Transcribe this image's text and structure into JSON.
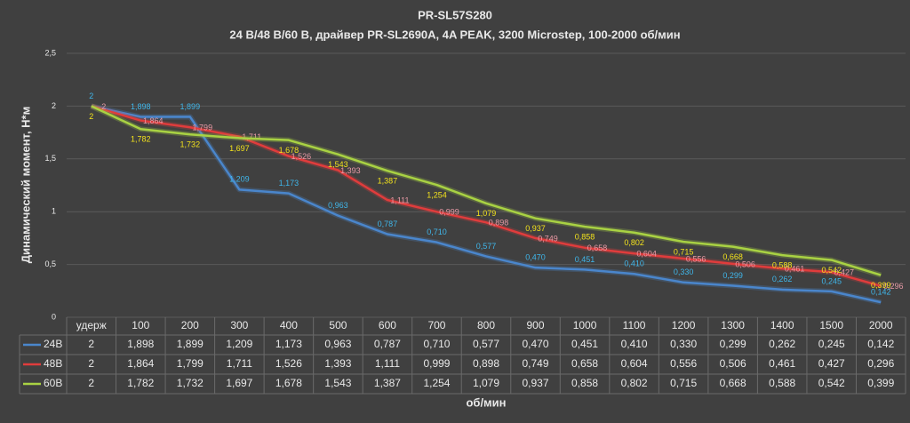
{
  "chart_data": {
    "type": "line",
    "title": "PR-SL57S280",
    "subtitle": "24 В/48 В/60 В, драйвер PR-SL2690A, 4A PEAK, 3200 Microstep, 100-2000 об/мин",
    "y_label": "Динамический момент, Н*м",
    "x_label": "об/мин",
    "categories": [
      "удерж",
      "100",
      "200",
      "300",
      "400",
      "500",
      "600",
      "700",
      "800",
      "900",
      "1000",
      "1100",
      "1200",
      "1300",
      "1400",
      "1500",
      "2000"
    ],
    "series": [
      {
        "name": "24В",
        "color": "#4a86cc",
        "label_color": "#3fb6ea",
        "values": [
          2,
          1.898,
          1.899,
          1.209,
          1.173,
          0.963,
          0.787,
          0.71,
          0.577,
          0.47,
          0.451,
          0.41,
          0.33,
          0.299,
          0.262,
          0.245,
          0.142
        ],
        "value_labels": [
          "2",
          "1,898",
          "1,899",
          "1,209",
          "1,173",
          "0,963",
          "0,787",
          "0,710",
          "0,577",
          "0,470",
          "0,451",
          "0,410",
          "0,330",
          "0,299",
          "0,262",
          "0,245",
          "0,142"
        ]
      },
      {
        "name": "48В",
        "color": "#e03c3c",
        "label_color": "#e89aa6",
        "values": [
          2,
          1.864,
          1.799,
          1.711,
          1.526,
          1.393,
          1.111,
          0.999,
          0.898,
          0.749,
          0.658,
          0.604,
          0.556,
          0.506,
          0.461,
          0.427,
          0.296
        ],
        "value_labels": [
          "2",
          "1,864",
          "1,799",
          "1,711",
          "1,526",
          "1,393",
          "1,111",
          "0,999",
          "0,898",
          "0,749",
          "0,658",
          "0,604",
          "0,556",
          "0,506",
          "0,461",
          "0,427",
          "0,296"
        ]
      },
      {
        "name": "60В",
        "color": "#a9d243",
        "label_color": "#f2e21c",
        "values": [
          2,
          1.782,
          1.732,
          1.697,
          1.678,
          1.543,
          1.387,
          1.254,
          1.079,
          0.937,
          0.858,
          0.802,
          0.715,
          0.668,
          0.588,
          0.542,
          0.399
        ],
        "value_labels": [
          "2",
          "1,782",
          "1,732",
          "1,697",
          "1,678",
          "1,543",
          "1,387",
          "1,254",
          "1,079",
          "0,937",
          "0,858",
          "0,802",
          "0,715",
          "0,668",
          "0,588",
          "0,542",
          "0,399"
        ]
      }
    ],
    "ylim": [
      0,
      2.5
    ],
    "yticks": [
      0,
      {
        "value": 0.5,
        "label": "0,5"
      },
      1,
      {
        "value": 1.5,
        "label": "1,5"
      },
      2,
      {
        "value": 2.5,
        "label": "2,5"
      }
    ],
    "grid": true
  }
}
